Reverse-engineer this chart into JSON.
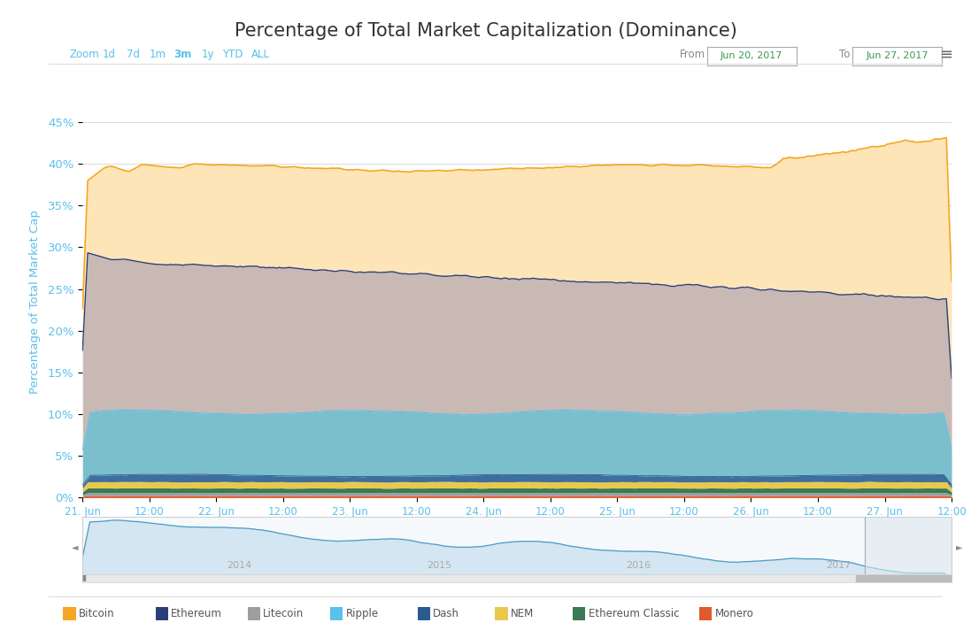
{
  "title": "Percentage of Total Market Capitalization (Dominance)",
  "ylabel": "Percentage of Total Market Cap",
  "date_labels": [
    "21. Jun",
    "12:00",
    "22. Jun",
    "12:00",
    "23. Jun",
    "12:00",
    "24. Jun",
    "12:00",
    "25. Jun",
    "12:00",
    "26. Jun",
    "12:00",
    "27. Jun",
    "12:00"
  ],
  "yticks": [
    0,
    5,
    10,
    15,
    20,
    25,
    30,
    35,
    40,
    45
  ],
  "ylim": [
    0,
    47
  ],
  "bg_color": "#ffffff",
  "grid_color": "#dddddd",
  "title_color": "#333333",
  "axis_label_color": "#5bc0eb",
  "tick_color": "#5bc0eb",
  "area_colors": [
    "#fde5b8",
    "#c9b9b5",
    "#7bbfcc",
    "#3d6e9e",
    "#e8c84d",
    "#3a7a55",
    "#b0b0b0",
    "#e05a2b"
  ],
  "line_colors": [
    "#f5a623",
    "#2c3e7a",
    "#5bc0eb",
    "#2b5b8e"
  ],
  "legend": [
    {
      "label": "Bitcoin",
      "color": "#f5a623"
    },
    {
      "label": "Ethereum",
      "color": "#2c3e7a"
    },
    {
      "label": "Litecoin",
      "color": "#9e9e9e"
    },
    {
      "label": "Ripple",
      "color": "#5bc0eb"
    },
    {
      "label": "Dash",
      "color": "#2b5b8e"
    },
    {
      "label": "NEM",
      "color": "#e8c84d"
    },
    {
      "label": "Ethereum Classic",
      "color": "#3a7a55"
    },
    {
      "label": "Monero",
      "color": "#e05a2b"
    }
  ],
  "mini_years": [
    "2014",
    "2015",
    "2016",
    "2017"
  ],
  "mini_year_xpos": [
    0.18,
    0.41,
    0.64,
    0.87
  ],
  "from_date": "Jun 20, 2017",
  "to_date": "Jun 27, 2017"
}
